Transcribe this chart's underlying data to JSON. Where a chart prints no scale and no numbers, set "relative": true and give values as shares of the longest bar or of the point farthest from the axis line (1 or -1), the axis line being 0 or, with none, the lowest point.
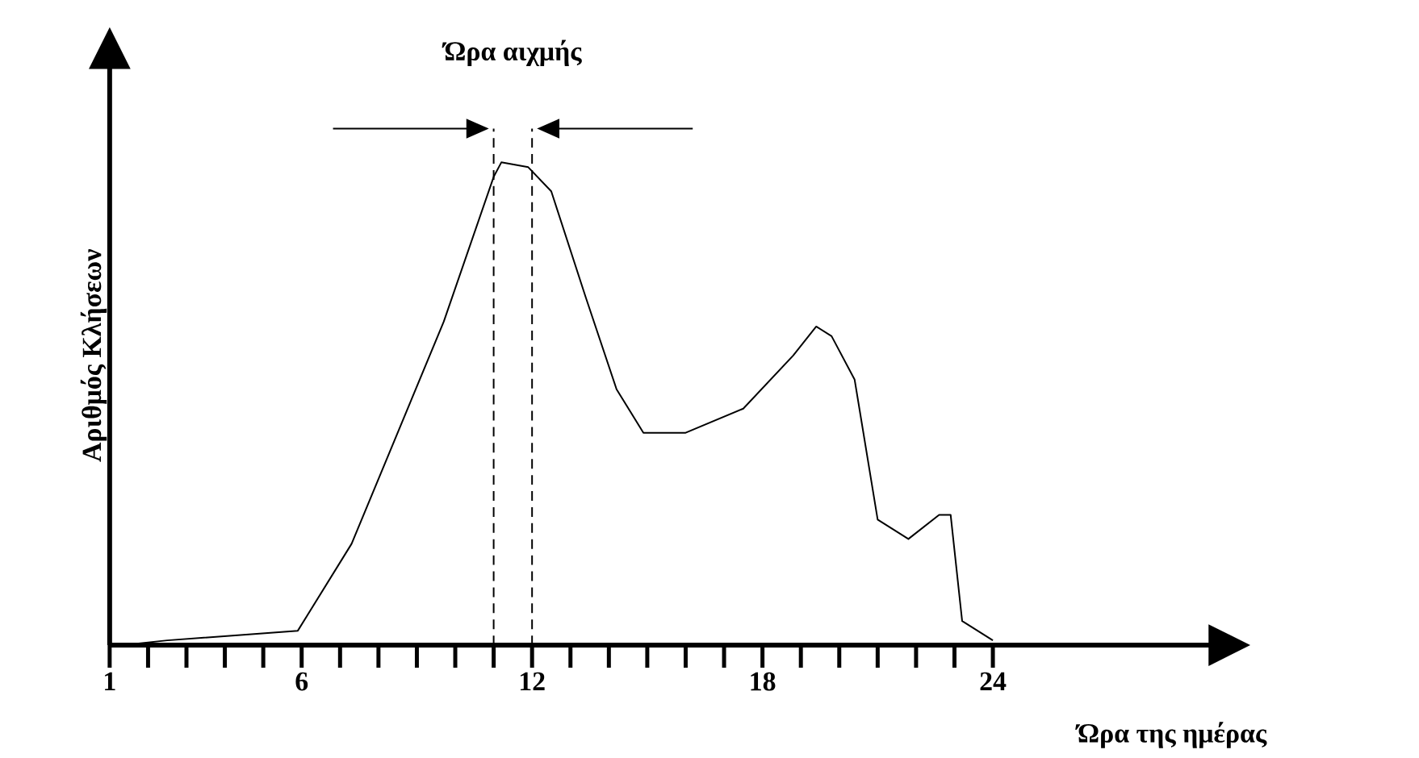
{
  "chart_data": {
    "type": "line",
    "xlabel": "Ώρα της ημέρας",
    "ylabel": "Αριθμός Κλήσεων",
    "relative": true,
    "color": "#000000",
    "x": [
      1.35,
      2.5,
      5.9,
      7.3,
      9.7,
      11.0,
      11.2,
      11.9,
      12.5,
      13.4,
      14.2,
      14.9,
      16.0,
      17.5,
      18.8,
      19.4,
      19.8,
      20.4,
      21.0,
      21.8,
      22.6,
      22.9,
      23.2,
      24.0
    ],
    "values": [
      0,
      0.01,
      0.03,
      0.21,
      0.67,
      0.97,
      1,
      0.99,
      0.94,
      0.72,
      0.53,
      0.44,
      0.44,
      0.49,
      0.6,
      0.66,
      0.64,
      0.55,
      0.26,
      0.22,
      0.27,
      0.27,
      0.05,
      0.01
    ],
    "xlim": [
      1,
      29.7
    ],
    "xticks": [
      1,
      {
        "value": 2,
        "label": null
      },
      {
        "value": 3,
        "label": null
      },
      {
        "value": 4,
        "label": null
      },
      {
        "value": 5,
        "label": null
      },
      6,
      {
        "value": 7,
        "label": null
      },
      {
        "value": 8,
        "label": null
      },
      {
        "value": 9,
        "label": null
      },
      {
        "value": 10,
        "label": null
      },
      {
        "value": 11,
        "label": null
      },
      12,
      {
        "value": 13,
        "label": null
      },
      {
        "value": 14,
        "label": null
      },
      {
        "value": 15,
        "label": null
      },
      {
        "value": 16,
        "label": null
      },
      {
        "value": 17,
        "label": null
      },
      18,
      {
        "value": 19,
        "label": null
      },
      {
        "value": 20,
        "label": null
      },
      {
        "value": 21,
        "label": null
      },
      {
        "value": 22,
        "label": null
      },
      {
        "value": 23,
        "label": null
      },
      24
    ],
    "ref_lines": [
      {
        "axis": "x",
        "value": 11,
        "line_style": "dashed"
      },
      {
        "axis": "x",
        "value": 12,
        "line_style": "dashed"
      }
    ],
    "annotations": [
      "Ώρα αιχμής"
    ]
  }
}
